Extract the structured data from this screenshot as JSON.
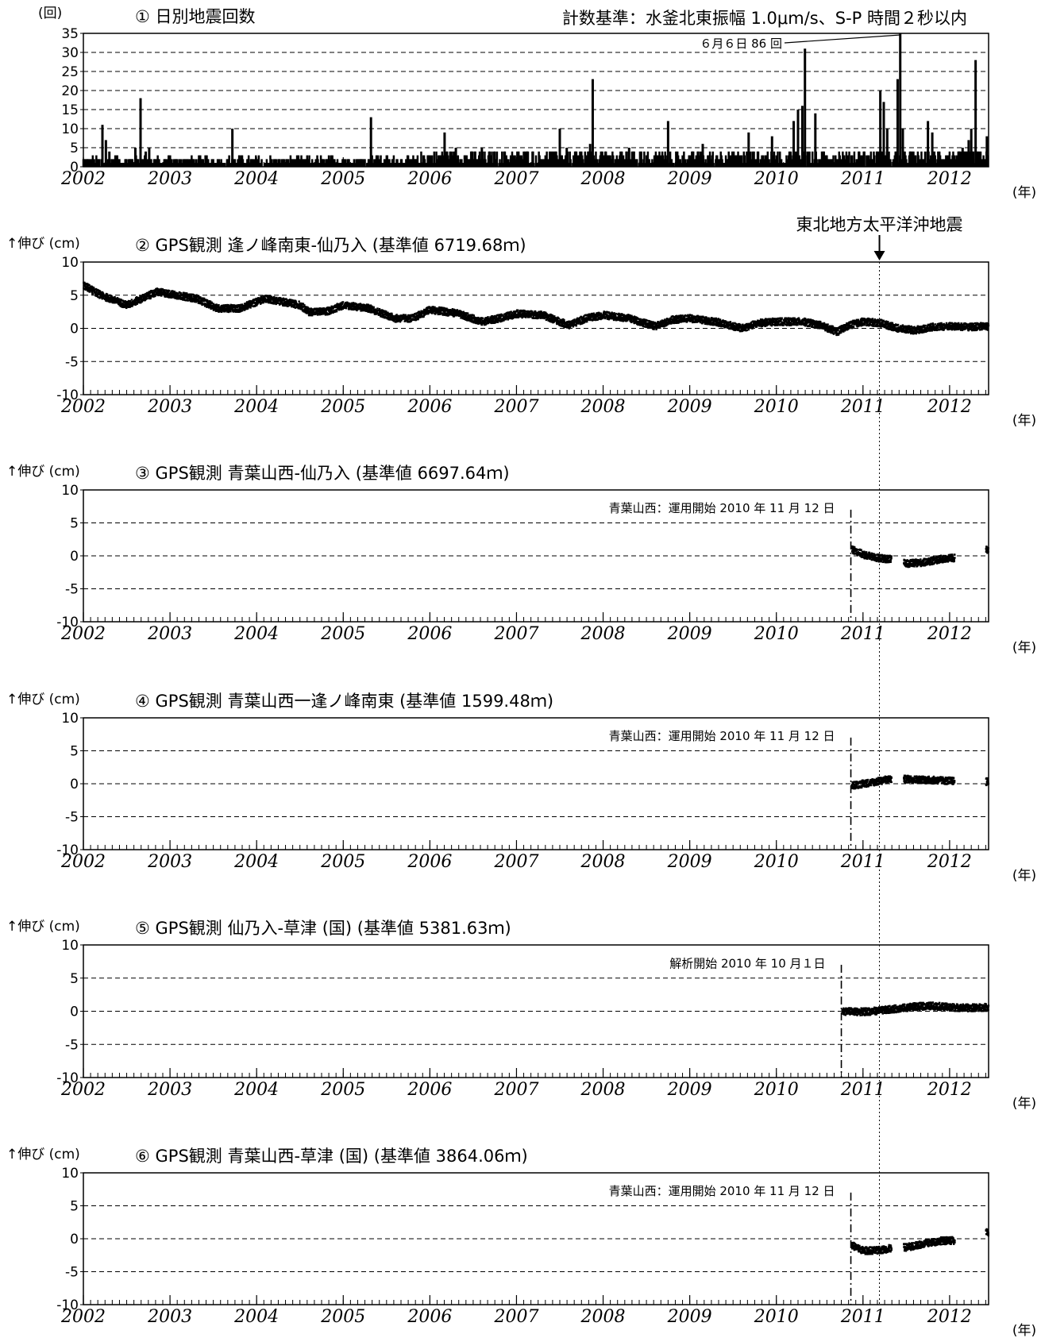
{
  "figure": {
    "eq_label": "東北地方太平洋沖地震",
    "eq_date": 2011.19,
    "year_unit": "(年)"
  },
  "chart_data": [
    {
      "type": "bar",
      "title": "① 日別地震回数",
      "ylabel": "(回)",
      "criteria": "計数基準：水釜北東振幅 1.0μm/s、S-P 時間２秒以内",
      "peak_annotation": "６月６日 86 回",
      "peak_date": 2011.43,
      "xlim": [
        2002,
        2012.45
      ],
      "ylim": [
        0,
        35
      ],
      "yticks": [
        0,
        5,
        10,
        15,
        20,
        25,
        30,
        35
      ],
      "xticks": [
        2002,
        2003,
        2004,
        2005,
        2006,
        2007,
        2008,
        2009,
        2010,
        2011,
        2012
      ],
      "grid": "dashed horizontal",
      "spikes": [
        {
          "date": 2002.22,
          "count": 11
        },
        {
          "date": 2002.26,
          "count": 7
        },
        {
          "date": 2002.3,
          "count": 4
        },
        {
          "date": 2002.37,
          "count": 3
        },
        {
          "date": 2002.6,
          "count": 5
        },
        {
          "date": 2002.66,
          "count": 18
        },
        {
          "date": 2002.72,
          "count": 4
        },
        {
          "date": 2002.76,
          "count": 5
        },
        {
          "date": 2003.0,
          "count": 3
        },
        {
          "date": 2003.72,
          "count": 10
        },
        {
          "date": 2003.8,
          "count": 3
        },
        {
          "date": 2005.32,
          "count": 13
        },
        {
          "date": 2005.4,
          "count": 3
        },
        {
          "date": 2006.17,
          "count": 9
        },
        {
          "date": 2006.3,
          "count": 5
        },
        {
          "date": 2006.6,
          "count": 5
        },
        {
          "date": 2007.5,
          "count": 10
        },
        {
          "date": 2007.58,
          "count": 5
        },
        {
          "date": 2007.85,
          "count": 6
        },
        {
          "date": 2007.88,
          "count": 23
        },
        {
          "date": 2008.3,
          "count": 5
        },
        {
          "date": 2008.75,
          "count": 12
        },
        {
          "date": 2009.15,
          "count": 6
        },
        {
          "date": 2009.68,
          "count": 9
        },
        {
          "date": 2009.95,
          "count": 8
        },
        {
          "date": 2010.2,
          "count": 12
        },
        {
          "date": 2010.25,
          "count": 15
        },
        {
          "date": 2010.3,
          "count": 16
        },
        {
          "date": 2010.33,
          "count": 31
        },
        {
          "date": 2010.36,
          "count": 4
        },
        {
          "date": 2010.45,
          "count": 14
        },
        {
          "date": 2011.2,
          "count": 20
        },
        {
          "date": 2011.24,
          "count": 17
        },
        {
          "date": 2011.28,
          "count": 10
        },
        {
          "date": 2011.4,
          "count": 23
        },
        {
          "date": 2011.43,
          "count": 35
        },
        {
          "date": 2011.46,
          "count": 10
        },
        {
          "date": 2011.75,
          "count": 12
        },
        {
          "date": 2011.8,
          "count": 9
        },
        {
          "date": 2012.15,
          "count": 5
        },
        {
          "date": 2012.22,
          "count": 7
        },
        {
          "date": 2012.25,
          "count": 10
        },
        {
          "date": 2012.3,
          "count": 28
        },
        {
          "date": 2012.43,
          "count": 8
        }
      ]
    },
    {
      "type": "scatter",
      "title": "② GPS観測 逢ノ峰南東-仙乃入 (基準値 6719.68ｍ)",
      "ylabel": "↑伸び (cm)",
      "xlim": [
        2002,
        2012.45
      ],
      "ylim": [
        -10,
        10
      ],
      "yticks": [
        -10,
        -5,
        0,
        5,
        10
      ],
      "xticks": [
        2002,
        2003,
        2004,
        2005,
        2006,
        2007,
        2008,
        2009,
        2010,
        2011,
        2012
      ],
      "grid": "dashed horizontal",
      "trend": [
        {
          "date": 2002.0,
          "value": 6.5
        },
        {
          "date": 2002.2,
          "value": 5.0
        },
        {
          "date": 2002.5,
          "value": 3.5
        },
        {
          "date": 2002.85,
          "value": 5.5
        },
        {
          "date": 2003.3,
          "value": 4.5
        },
        {
          "date": 2003.55,
          "value": 3.0
        },
        {
          "date": 2003.8,
          "value": 3.0
        },
        {
          "date": 2004.1,
          "value": 4.5
        },
        {
          "date": 2004.5,
          "value": 3.5
        },
        {
          "date": 2004.6,
          "value": 2.5
        },
        {
          "date": 2004.8,
          "value": 2.5
        },
        {
          "date": 2005.0,
          "value": 3.5
        },
        {
          "date": 2005.3,
          "value": 3.0
        },
        {
          "date": 2005.6,
          "value": 1.5
        },
        {
          "date": 2005.8,
          "value": 1.5
        },
        {
          "date": 2006.0,
          "value": 2.8
        },
        {
          "date": 2006.3,
          "value": 2.3
        },
        {
          "date": 2006.6,
          "value": 1.0
        },
        {
          "date": 2006.8,
          "value": 1.5
        },
        {
          "date": 2007.0,
          "value": 2.2
        },
        {
          "date": 2007.3,
          "value": 2.0
        },
        {
          "date": 2007.6,
          "value": 0.5
        },
        {
          "date": 2007.8,
          "value": 1.5
        },
        {
          "date": 2008.0,
          "value": 2.0
        },
        {
          "date": 2008.3,
          "value": 1.5
        },
        {
          "date": 2008.6,
          "value": 0.3
        },
        {
          "date": 2008.8,
          "value": 1.3
        },
        {
          "date": 2009.0,
          "value": 1.5
        },
        {
          "date": 2009.3,
          "value": 1.0
        },
        {
          "date": 2009.6,
          "value": 0.0
        },
        {
          "date": 2009.8,
          "value": 0.8
        },
        {
          "date": 2010.0,
          "value": 1.0
        },
        {
          "date": 2010.3,
          "value": 1.0
        },
        {
          "date": 2010.5,
          "value": 0.5
        },
        {
          "date": 2010.7,
          "value": -0.5
        },
        {
          "date": 2010.85,
          "value": 0.5
        },
        {
          "date": 2011.0,
          "value": 1.0
        },
        {
          "date": 2011.2,
          "value": 0.8
        },
        {
          "date": 2011.4,
          "value": 0.0
        },
        {
          "date": 2011.6,
          "value": -0.3
        },
        {
          "date": 2011.8,
          "value": 0.2
        },
        {
          "date": 2012.0,
          "value": 0.3
        },
        {
          "date": 2012.2,
          "value": 0.2
        },
        {
          "date": 2012.45,
          "value": 0.3
        }
      ]
    },
    {
      "type": "scatter",
      "title": "③ GPS観測 青葉山西-仙乃入 (基準値 6697.64ｍ)",
      "ylabel": "↑伸び (cm)",
      "annotation": "青葉山西：運用開始 2010 年 11 月 12 日",
      "start_marker": 2010.86,
      "xlim": [
        2002,
        2012.45
      ],
      "ylim": [
        -10,
        10
      ],
      "yticks": [
        -10,
        -5,
        0,
        5,
        10
      ],
      "xticks": [
        2002,
        2003,
        2004,
        2005,
        2006,
        2007,
        2008,
        2009,
        2010,
        2011,
        2012
      ],
      "grid": "dashed horizontal",
      "trend": [
        {
          "date": 2010.87,
          "value": 1.0
        },
        {
          "date": 2011.0,
          "value": 0.2
        },
        {
          "date": 2011.15,
          "value": -0.3
        },
        {
          "date": 2011.3,
          "value": -0.5
        },
        {
          "date": 2011.5,
          "value": -1.2
        },
        {
          "date": 2011.7,
          "value": -1.0
        },
        {
          "date": 2011.9,
          "value": -0.5
        },
        {
          "date": 2012.05,
          "value": -0.3
        },
        {
          "date": 2012.45,
          "value": 1.0
        }
      ],
      "gaps": [
        [
          2011.33,
          2011.47
        ],
        [
          2012.06,
          2012.42
        ]
      ]
    },
    {
      "type": "scatter",
      "title": "④ GPS観測 青葉山西一逢ノ峰南東 (基準値 1599.48ｍ)",
      "ylabel": "↑伸び (cm)",
      "annotation": "青葉山西：運用開始 2010 年 11 月 12 日",
      "start_marker": 2010.86,
      "xlim": [
        2002,
        2012.45
      ],
      "ylim": [
        -10,
        10
      ],
      "yticks": [
        -10,
        -5,
        0,
        5,
        10
      ],
      "xticks": [
        2002,
        2003,
        2004,
        2005,
        2006,
        2007,
        2008,
        2009,
        2010,
        2011,
        2012
      ],
      "grid": "dashed horizontal",
      "trend": [
        {
          "date": 2010.87,
          "value": -0.3
        },
        {
          "date": 2011.0,
          "value": 0.0
        },
        {
          "date": 2011.15,
          "value": 0.3
        },
        {
          "date": 2011.3,
          "value": 0.7
        },
        {
          "date": 2011.5,
          "value": 0.7
        },
        {
          "date": 2011.7,
          "value": 0.6
        },
        {
          "date": 2011.9,
          "value": 0.5
        },
        {
          "date": 2012.05,
          "value": 0.4
        },
        {
          "date": 2012.45,
          "value": 0.3
        }
      ],
      "gaps": [
        [
          2011.33,
          2011.47
        ],
        [
          2012.06,
          2012.42
        ]
      ]
    },
    {
      "type": "scatter",
      "title": "⑤ GPS観測 仙乃入-草津 (国) (基準値 5381.63ｍ)",
      "ylabel": "↑伸び (cm)",
      "annotation": "解析開始 2010 年 10 月１日",
      "start_marker": 2010.75,
      "xlim": [
        2002,
        2012.45
      ],
      "ylim": [
        -10,
        10
      ],
      "yticks": [
        -10,
        -5,
        0,
        5,
        10
      ],
      "xticks": [
        2002,
        2003,
        2004,
        2005,
        2006,
        2007,
        2008,
        2009,
        2010,
        2011,
        2012
      ],
      "grid": "dashed horizontal",
      "trend": [
        {
          "date": 2010.76,
          "value": 0.0
        },
        {
          "date": 2011.0,
          "value": -0.1
        },
        {
          "date": 2011.2,
          "value": 0.1
        },
        {
          "date": 2011.4,
          "value": 0.4
        },
        {
          "date": 2011.6,
          "value": 0.7
        },
        {
          "date": 2011.8,
          "value": 0.8
        },
        {
          "date": 2012.0,
          "value": 0.6
        },
        {
          "date": 2012.2,
          "value": 0.5
        },
        {
          "date": 2012.45,
          "value": 0.6
        }
      ],
      "gaps": []
    },
    {
      "type": "scatter",
      "title": "⑥ GPS観測 青葉山西-草津 (国) (基準値 3864.06ｍ)",
      "ylabel": "↑伸び (cm)",
      "annotation": "青葉山西：運用開始 2010 年 11 月 12 日",
      "start_marker": 2010.86,
      "xlim": [
        2002,
        2012.45
      ],
      "ylim": [
        -10,
        10
      ],
      "yticks": [
        -10,
        -5,
        0,
        5,
        10
      ],
      "xticks": [
        2002,
        2003,
        2004,
        2005,
        2006,
        2007,
        2008,
        2009,
        2010,
        2011,
        2012
      ],
      "grid": "dashed horizontal",
      "trend": [
        {
          "date": 2010.87,
          "value": -1.0
        },
        {
          "date": 2011.0,
          "value": -1.8
        },
        {
          "date": 2011.15,
          "value": -1.8
        },
        {
          "date": 2011.3,
          "value": -1.5
        },
        {
          "date": 2011.5,
          "value": -1.3
        },
        {
          "date": 2011.7,
          "value": -0.8
        },
        {
          "date": 2011.9,
          "value": -0.3
        },
        {
          "date": 2012.05,
          "value": -0.3
        },
        {
          "date": 2012.45,
          "value": 1.0
        }
      ],
      "gaps": [
        [
          2011.33,
          2011.47
        ],
        [
          2012.06,
          2012.42
        ]
      ]
    }
  ]
}
